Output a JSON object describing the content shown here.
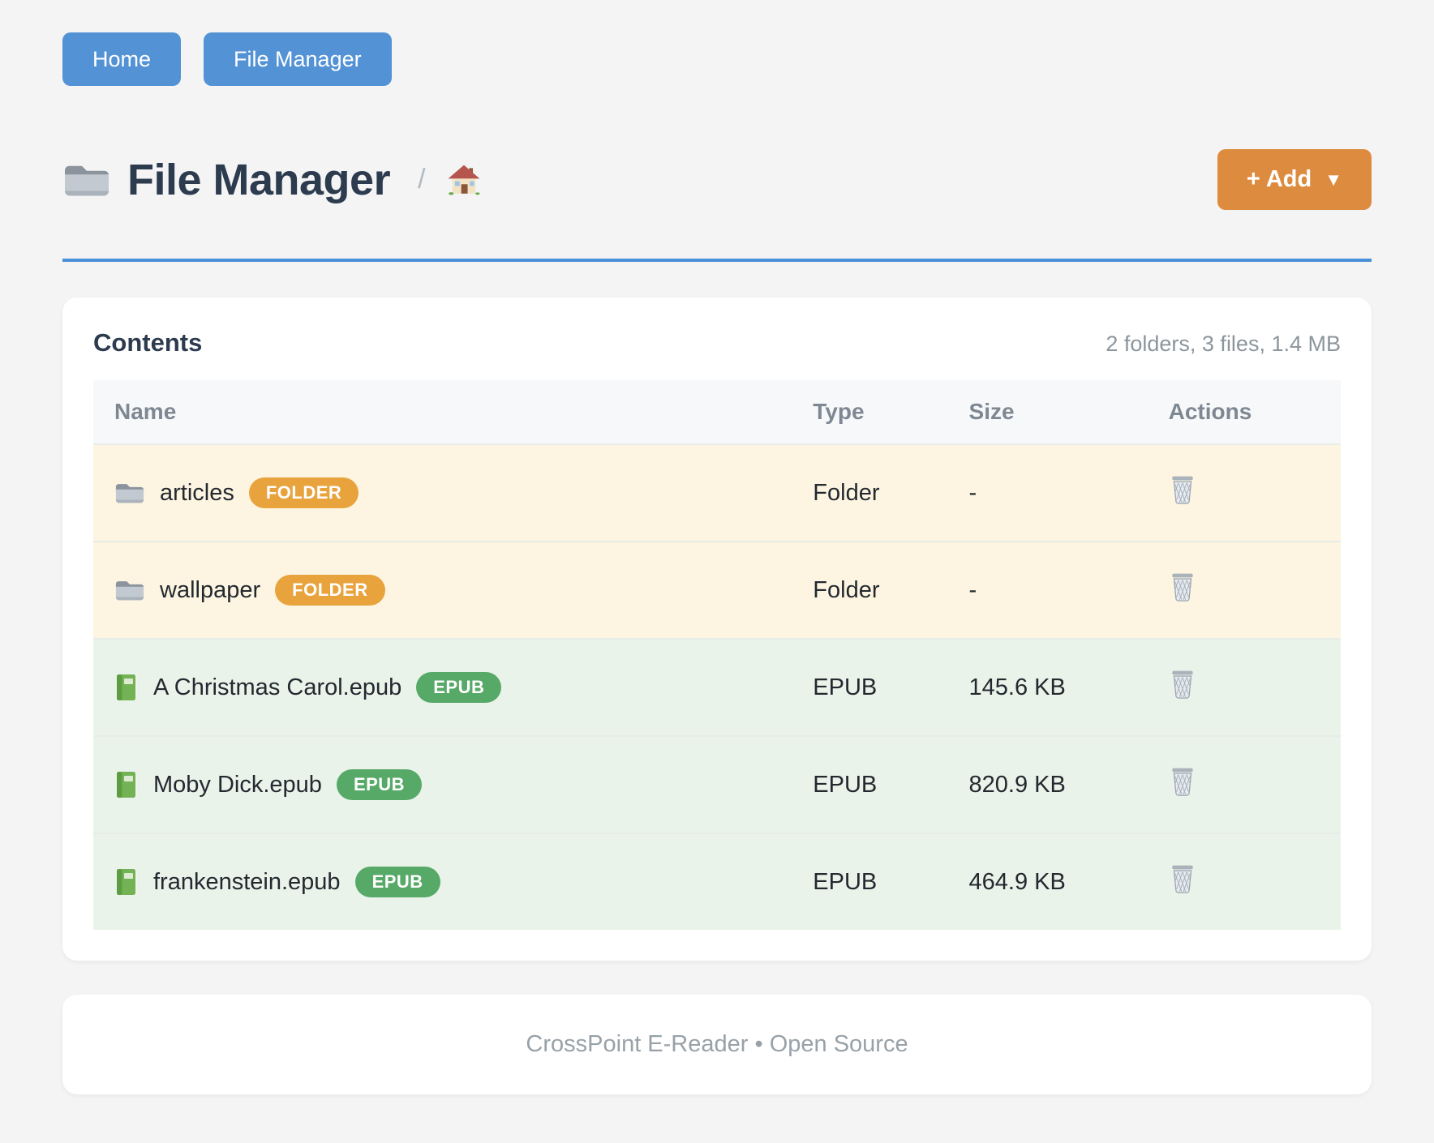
{
  "nav": {
    "buttons": [
      {
        "label": "Home"
      },
      {
        "label": "File Manager"
      }
    ]
  },
  "header": {
    "title": "File Manager",
    "title_icon": "folder-icon",
    "breadcrumb_separator": "/",
    "breadcrumb_home_icon": "home-icon",
    "add_label": "+ Add",
    "add_caret": "▼"
  },
  "contents": {
    "title": "Contents",
    "summary": "2 folders, 3 files, 1.4 MB",
    "columns": [
      "Name",
      "Type",
      "Size",
      "Actions"
    ],
    "rows": [
      {
        "name": "articles",
        "kind": "folder",
        "icon": "folder-icon",
        "badge": "FOLDER",
        "type": "Folder",
        "size": "-",
        "action_icon": "trash-icon"
      },
      {
        "name": "wallpaper",
        "kind": "folder",
        "icon": "folder-icon",
        "badge": "FOLDER",
        "type": "Folder",
        "size": "-",
        "action_icon": "trash-icon"
      },
      {
        "name": "A Christmas Carol.epub",
        "kind": "epub",
        "icon": "book-icon",
        "badge": "EPUB",
        "type": "EPUB",
        "size": "145.6 KB",
        "action_icon": "trash-icon"
      },
      {
        "name": "Moby Dick.epub",
        "kind": "epub",
        "icon": "book-icon",
        "badge": "EPUB",
        "type": "EPUB",
        "size": "820.9 KB",
        "action_icon": "trash-icon"
      },
      {
        "name": "frankenstein.epub",
        "kind": "epub",
        "icon": "book-icon",
        "badge": "EPUB",
        "type": "EPUB",
        "size": "464.9 KB",
        "action_icon": "trash-icon"
      }
    ]
  },
  "footer": {
    "text": "CrossPoint E-Reader • Open Source"
  },
  "colors": {
    "page_bg": "#f4f4f5",
    "nav_button": "#5292d5",
    "accent_rule": "#4a90d9",
    "add_button": "#dd8c3f",
    "badge_folder": "#e8a33d",
    "badge_epub": "#57a968",
    "row_folder_bg": "#fdf5e1",
    "row_epub_bg": "#e9f3ea",
    "heading_text": "#2d3b4f",
    "muted_text": "#8b959c"
  }
}
